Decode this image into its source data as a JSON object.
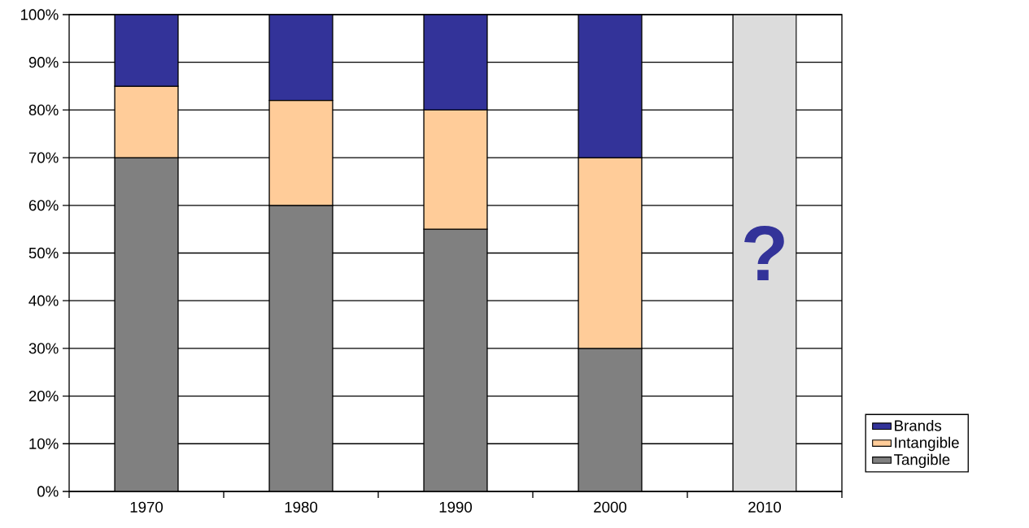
{
  "chart_data": {
    "type": "bar",
    "stacked": true,
    "categories": [
      "1970",
      "1980",
      "1990",
      "2000",
      "2010"
    ],
    "series": [
      {
        "name": "Tangible",
        "color": "#808080",
        "values": [
          70,
          60,
          55,
          30,
          null
        ]
      },
      {
        "name": "Intangible",
        "color": "#ffcc99",
        "values": [
          15,
          22,
          25,
          40,
          null
        ]
      },
      {
        "name": "Brands",
        "color": "#333399",
        "values": [
          15,
          18,
          20,
          30,
          null
        ]
      },
      {
        "color": "#dcdcdc",
        "values": [
          null,
          null,
          null,
          null,
          100
        ]
      }
    ],
    "ylim": [
      0,
      100
    ],
    "yticks": [
      {
        "value": 0,
        "label": "0%"
      },
      {
        "value": 10,
        "label": "10%"
      },
      {
        "value": 20,
        "label": "20%"
      },
      {
        "value": 30,
        "label": "30%"
      },
      {
        "value": 40,
        "label": "40%"
      },
      {
        "value": 50,
        "label": "50%"
      },
      {
        "value": 60,
        "label": "60%"
      },
      {
        "value": 70,
        "label": "70%"
      },
      {
        "value": 80,
        "label": "80%"
      },
      {
        "value": 90,
        "label": "90%"
      },
      {
        "value": 100,
        "label": "100%"
      }
    ],
    "grid": "y",
    "legend": "right",
    "annotations": [
      "?"
    ]
  }
}
